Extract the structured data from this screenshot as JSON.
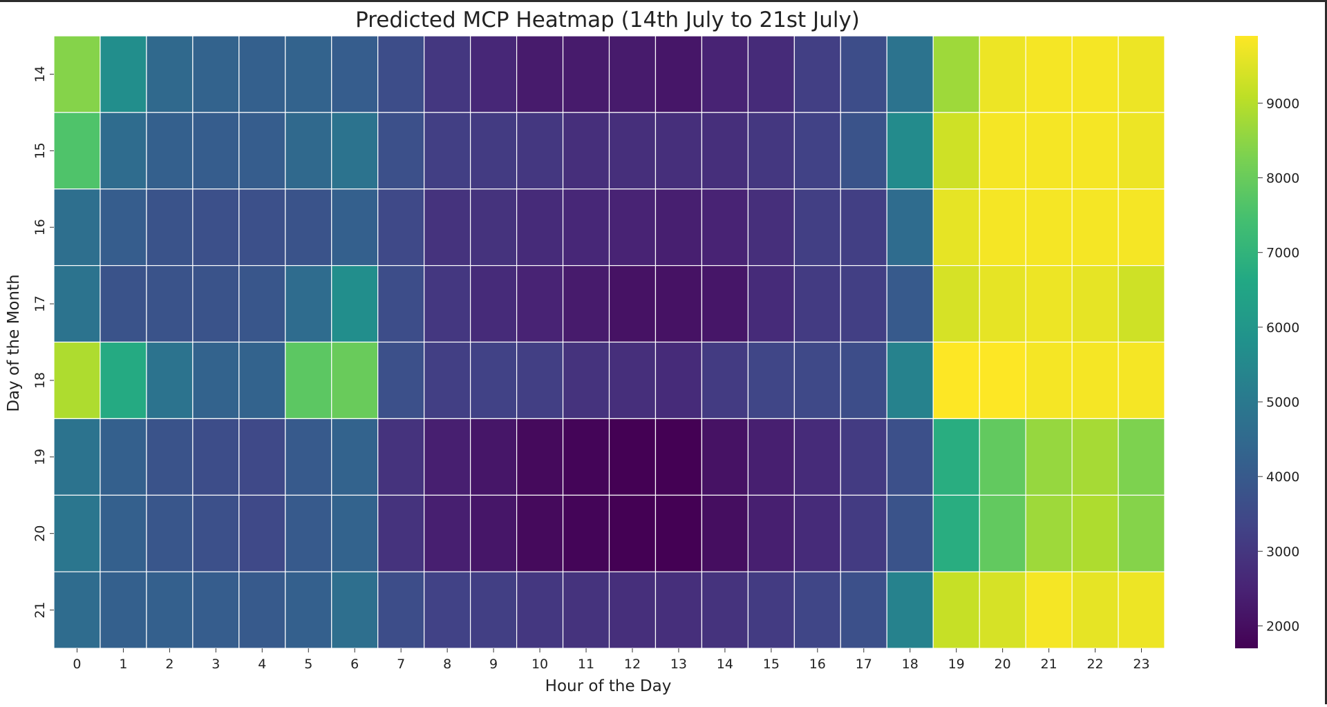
{
  "chart_data": {
    "type": "heatmap",
    "title": "Predicted MCP Heatmap (14th July to 21st July)",
    "xlabel": "Hour of the Day",
    "ylabel": "Day of the Month",
    "x_categories": [
      "0",
      "1",
      "2",
      "3",
      "4",
      "5",
      "6",
      "7",
      "8",
      "9",
      "10",
      "11",
      "12",
      "13",
      "14",
      "15",
      "16",
      "17",
      "18",
      "19",
      "20",
      "21",
      "22",
      "23"
    ],
    "y_categories": [
      "14",
      "15",
      "16",
      "17",
      "18",
      "19",
      "20",
      "21"
    ],
    "colormap": "viridis",
    "cell_border_color": "#ffffff",
    "color_range": [
      1700,
      9900
    ],
    "colorbar_ticks": [
      "2000",
      "3000",
      "4000",
      "5000",
      "6000",
      "7000",
      "8000",
      "9000"
    ],
    "values": [
      [
        8400,
        5700,
        4500,
        4300,
        4200,
        4300,
        4100,
        3600,
        3000,
        2600,
        2300,
        2300,
        2300,
        2200,
        2500,
        2700,
        3200,
        3600,
        4800,
        8700,
        9700,
        9800,
        9800,
        9700
      ],
      [
        7600,
        4600,
        4200,
        4100,
        4100,
        4500,
        4800,
        3700,
        3200,
        3100,
        3000,
        2800,
        2800,
        2800,
        2800,
        3000,
        3300,
        3800,
        5600,
        9300,
        9800,
        9800,
        9800,
        9700
      ],
      [
        4700,
        4100,
        3800,
        3700,
        3700,
        3800,
        4200,
        3500,
        2900,
        2900,
        2700,
        2600,
        2500,
        2400,
        2500,
        2800,
        3200,
        3200,
        4600,
        9600,
        9800,
        9800,
        9800,
        9800
      ],
      [
        4800,
        3800,
        3800,
        3800,
        3900,
        4600,
        5700,
        3600,
        3000,
        2700,
        2500,
        2300,
        2100,
        2100,
        2200,
        2700,
        3100,
        3200,
        4000,
        9400,
        9600,
        9700,
        9600,
        9300
      ],
      [
        8900,
        6700,
        4800,
        4300,
        4300,
        7800,
        8000,
        3700,
        3200,
        3300,
        3200,
        2900,
        2800,
        2700,
        3100,
        3400,
        3500,
        3600,
        5300,
        9900,
        9900,
        9800,
        9800,
        9800
      ],
      [
        4800,
        4200,
        3800,
        3600,
        3500,
        4000,
        4300,
        2900,
        2400,
        2200,
        1900,
        1800,
        1700,
        1700,
        2100,
        2400,
        2700,
        3100,
        3700,
        6800,
        7900,
        8600,
        8800,
        8300
      ],
      [
        4900,
        4200,
        3900,
        3700,
        3500,
        4000,
        4300,
        2900,
        2400,
        2200,
        1900,
        1800,
        1700,
        1700,
        2000,
        2400,
        2700,
        3100,
        3800,
        6800,
        7900,
        8700,
        8900,
        8400
      ],
      [
        4600,
        4200,
        4200,
        4100,
        4000,
        4200,
        4700,
        3600,
        3300,
        3200,
        3000,
        2900,
        2800,
        2800,
        2900,
        3100,
        3400,
        3700,
        5300,
        9200,
        9400,
        9800,
        9600,
        9700
      ]
    ]
  }
}
